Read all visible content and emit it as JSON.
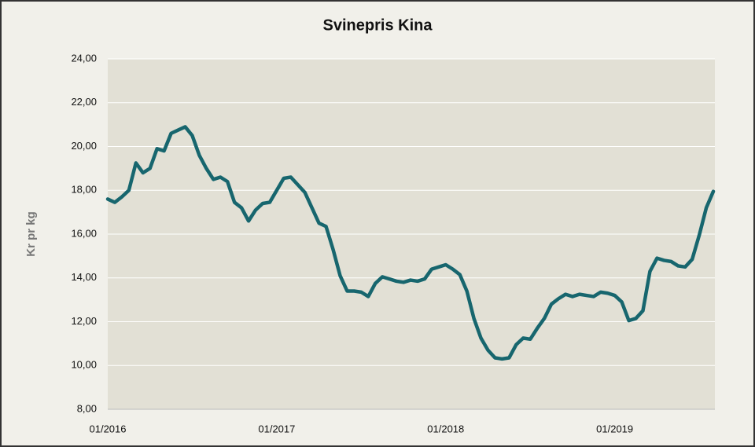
{
  "chart_data": {
    "type": "line",
    "title": "Svinepris Kina",
    "y_label": "Kr pr kg",
    "categories": [
      "01/2016",
      null,
      null,
      null,
      null,
      null,
      null,
      null,
      null,
      null,
      null,
      null,
      null,
      null,
      null,
      null,
      null,
      null,
      null,
      null,
      null,
      null,
      null,
      null,
      "01/2017",
      null,
      null,
      null,
      null,
      null,
      null,
      null,
      null,
      null,
      null,
      null,
      null,
      null,
      null,
      null,
      null,
      null,
      null,
      null,
      null,
      null,
      null,
      null,
      "01/2018",
      null,
      null,
      null,
      null,
      null,
      null,
      null,
      null,
      null,
      null,
      null,
      null,
      null,
      null,
      null,
      null,
      null,
      null,
      null,
      null,
      null,
      null,
      null,
      "01/2019",
      null,
      null,
      null,
      null,
      null,
      null,
      null,
      null,
      null,
      null,
      null,
      null,
      null,
      null
    ],
    "series": [
      {
        "name": "Svinepris Kina",
        "color": "#17666e",
        "values": [
          17.6,
          17.45,
          17.7,
          18.0,
          19.25,
          18.8,
          19.0,
          19.9,
          19.8,
          20.6,
          20.75,
          20.9,
          20.5,
          19.6,
          19.0,
          18.5,
          18.6,
          18.4,
          17.45,
          17.2,
          16.6,
          17.1,
          17.4,
          17.45,
          18.0,
          18.55,
          18.6,
          18.25,
          17.9,
          17.2,
          16.5,
          16.35,
          15.3,
          14.1,
          13.4,
          13.4,
          13.35,
          13.15,
          13.75,
          14.05,
          13.95,
          13.85,
          13.8,
          13.9,
          13.85,
          13.95,
          14.4,
          14.5,
          14.6,
          14.4,
          14.15,
          13.4,
          12.15,
          11.25,
          10.7,
          10.35,
          10.3,
          10.35,
          10.95,
          11.25,
          11.2,
          11.7,
          12.15,
          12.8,
          13.05,
          13.25,
          13.15,
          13.25,
          13.2,
          13.15,
          13.35,
          13.3,
          13.2,
          12.9,
          12.05,
          12.15,
          12.5,
          14.3,
          14.9,
          14.8,
          14.75,
          14.55,
          14.5,
          14.85,
          15.95,
          17.2,
          17.95
        ]
      }
    ],
    "ylim": [
      8,
      24
    ],
    "yticks": [
      {
        "value": 8,
        "label": "8,00"
      },
      {
        "value": 10,
        "label": "10,00"
      },
      {
        "value": 12,
        "label": "12,00"
      },
      {
        "value": 14,
        "label": "14,00"
      },
      {
        "value": 16,
        "label": "16,00"
      },
      {
        "value": 18,
        "label": "18,00"
      },
      {
        "value": 20,
        "label": "20,00"
      },
      {
        "value": 22,
        "label": "22,00"
      },
      {
        "value": 24,
        "label": "24,00"
      }
    ],
    "grid": true
  }
}
